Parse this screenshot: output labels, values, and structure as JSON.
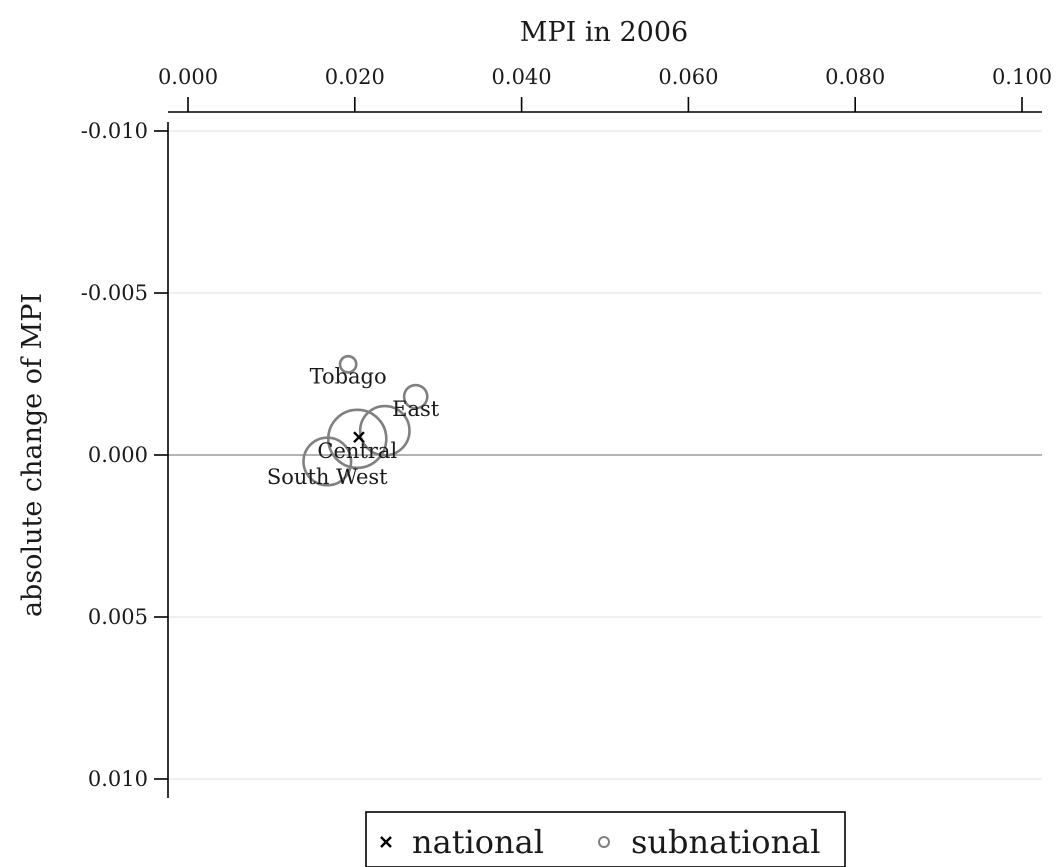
{
  "chart_data": {
    "type": "scatter",
    "xlabel": "MPI in 2006",
    "ylabel": "absolute change of MPI",
    "xlim": [
      0.0,
      0.1
    ],
    "ylim": [
      -0.01,
      0.01
    ],
    "x_ticks": [
      "0.000",
      "0.020",
      "0.040",
      "0.060",
      "0.080",
      "0.100"
    ],
    "y_ticks": [
      "0.010",
      "0.005",
      "0.000",
      "-0.005",
      "-0.010"
    ],
    "grid": true,
    "reference_line_y": 0.0,
    "legend_position": "bottom-center",
    "series": [
      {
        "name": "national",
        "marker": "x",
        "color": "#000000",
        "points": [
          {
            "x": 0.0205,
            "y": -0.00055
          }
        ]
      },
      {
        "name": "subnational",
        "marker": "circle",
        "color": "#808080",
        "points": [
          {
            "label": "South West",
            "x": 0.0167,
            "y": 0.0002,
            "size": 0.82
          },
          {
            "label": "Central",
            "x": 0.0203,
            "y": -0.0005,
            "size": 1.0
          },
          {
            "label": "East",
            "x": 0.0236,
            "y": -0.00075,
            "size": 0.85
          },
          {
            "label": "",
            "x": 0.0273,
            "y": -0.0018,
            "size": 0.4
          },
          {
            "label": "Tobago",
            "x": 0.0192,
            "y": -0.0028,
            "size": 0.28
          }
        ]
      }
    ],
    "annotations": [
      {
        "text": "South West",
        "x": 0.0167,
        "y": 0.0009
      },
      {
        "text": "Central",
        "x": 0.0203,
        "y": 0.0001
      },
      {
        "text": "East",
        "x": 0.0273,
        "y": -0.0012
      },
      {
        "text": "Tobago",
        "x": 0.0192,
        "y": -0.0022
      }
    ]
  }
}
